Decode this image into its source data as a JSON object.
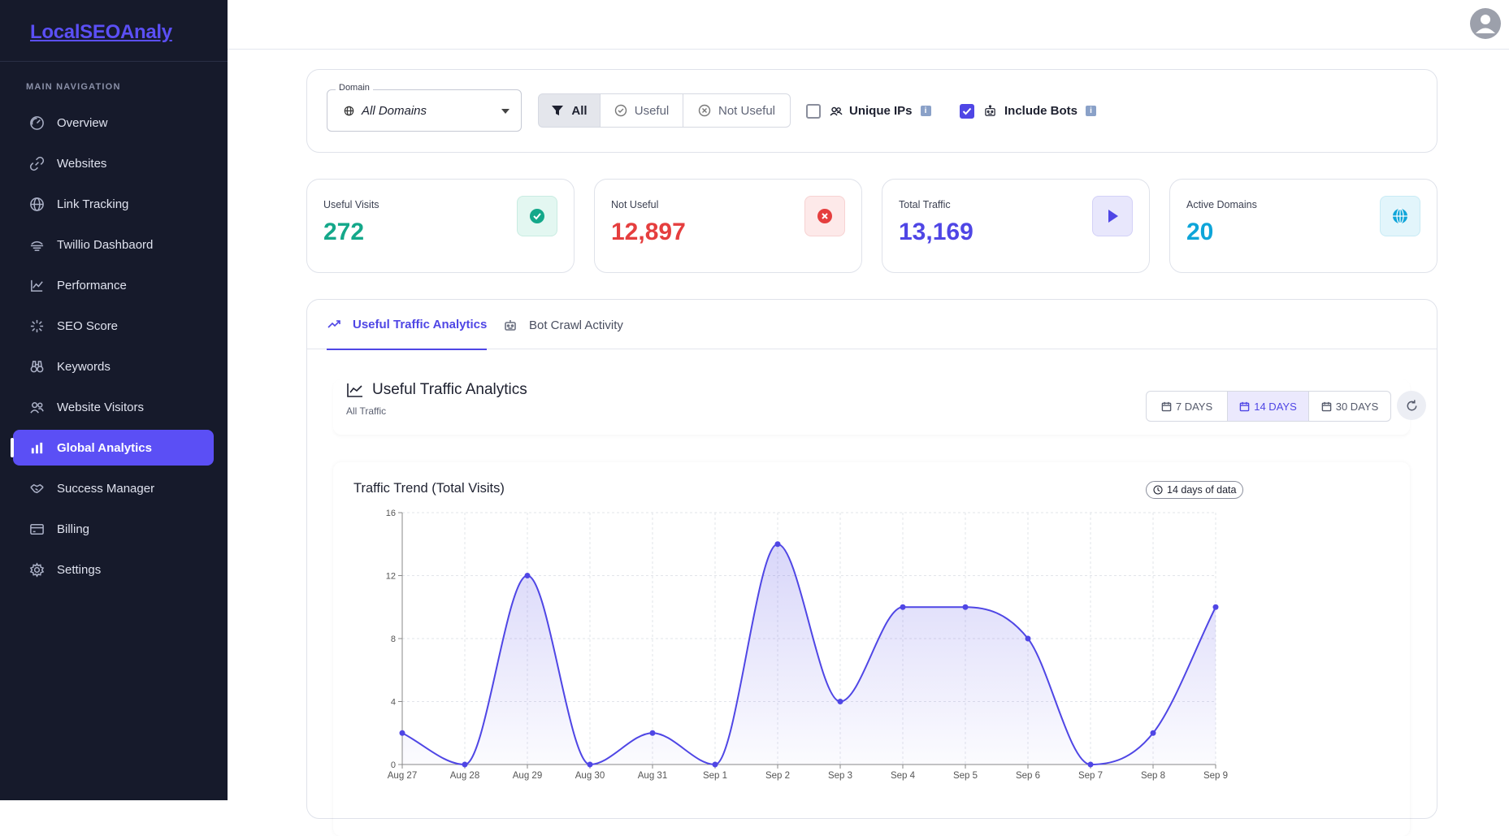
{
  "app": {
    "logo": "LocalSEOAnaly"
  },
  "sidebar": {
    "section_title": "MAIN NAVIGATION",
    "items": [
      {
        "label": "Overview",
        "icon": "gauge-icon"
      },
      {
        "label": "Websites",
        "icon": "link-icon"
      },
      {
        "label": "Link Tracking",
        "icon": "globe-icon"
      },
      {
        "label": "Twillio Dashbaord",
        "icon": "dashboard-icon"
      },
      {
        "label": "Performance",
        "icon": "chart-line-icon"
      },
      {
        "label": "SEO Score",
        "icon": "score-icon"
      },
      {
        "label": "Keywords",
        "icon": "binoculars-icon"
      },
      {
        "label": "Website Visitors",
        "icon": "users-icon"
      },
      {
        "label": "Global Analytics",
        "icon": "bar-chart-icon"
      },
      {
        "label": "Success Manager",
        "icon": "handshake-icon"
      },
      {
        "label": "Billing",
        "icon": "card-icon"
      },
      {
        "label": "Settings",
        "icon": "gear-icon"
      }
    ]
  },
  "filters": {
    "domain_label": "Domain",
    "domain_value": "All Domains",
    "seg_all": "All",
    "seg_useful": "Useful",
    "seg_not_useful": "Not Useful",
    "unique_ips": "Unique IPs",
    "include_bots": "Include Bots",
    "info_glyph": "i"
  },
  "stats": {
    "useful": {
      "label": "Useful Visits",
      "value": "272",
      "color": "#14a88a"
    },
    "not_useful": {
      "label": "Not Useful",
      "value": "12,897",
      "color": "#e53e3e"
    },
    "total": {
      "label": "Total Traffic",
      "value": "13,169",
      "color": "#4f46e5"
    },
    "domains": {
      "label": "Active Domains",
      "value": "20",
      "color": "#0ea5d9"
    }
  },
  "tabs": {
    "useful": "Useful Traffic Analytics",
    "bot": "Bot Crawl Activity"
  },
  "analytics": {
    "title": "Useful Traffic Analytics",
    "subtitle": "All Traffic",
    "range_7": "7 DAYS",
    "range_14": "14 DAYS",
    "range_30": "30 DAYS"
  },
  "chart_title": "Traffic Trend (Total Visits)",
  "chart_badge": "14 days of data",
  "colors": {
    "accent": "#4f46e5",
    "sidebar_bg": "#161a2b"
  },
  "chart_data": {
    "type": "area",
    "categories": [
      "Aug 27",
      "Aug 28",
      "Aug 29",
      "Aug 30",
      "Aug 31",
      "Sep 1",
      "Sep 2",
      "Sep 3",
      "Sep 4",
      "Sep 5",
      "Sep 6",
      "Sep 7",
      "Sep 8",
      "Sep 9"
    ],
    "values": [
      2,
      0,
      12,
      0,
      2,
      0,
      14,
      4,
      10,
      10,
      8,
      0,
      2,
      10
    ],
    "ylim": [
      0,
      16
    ],
    "yticks": [
      0,
      4,
      8,
      12,
      16
    ],
    "grid": true
  }
}
